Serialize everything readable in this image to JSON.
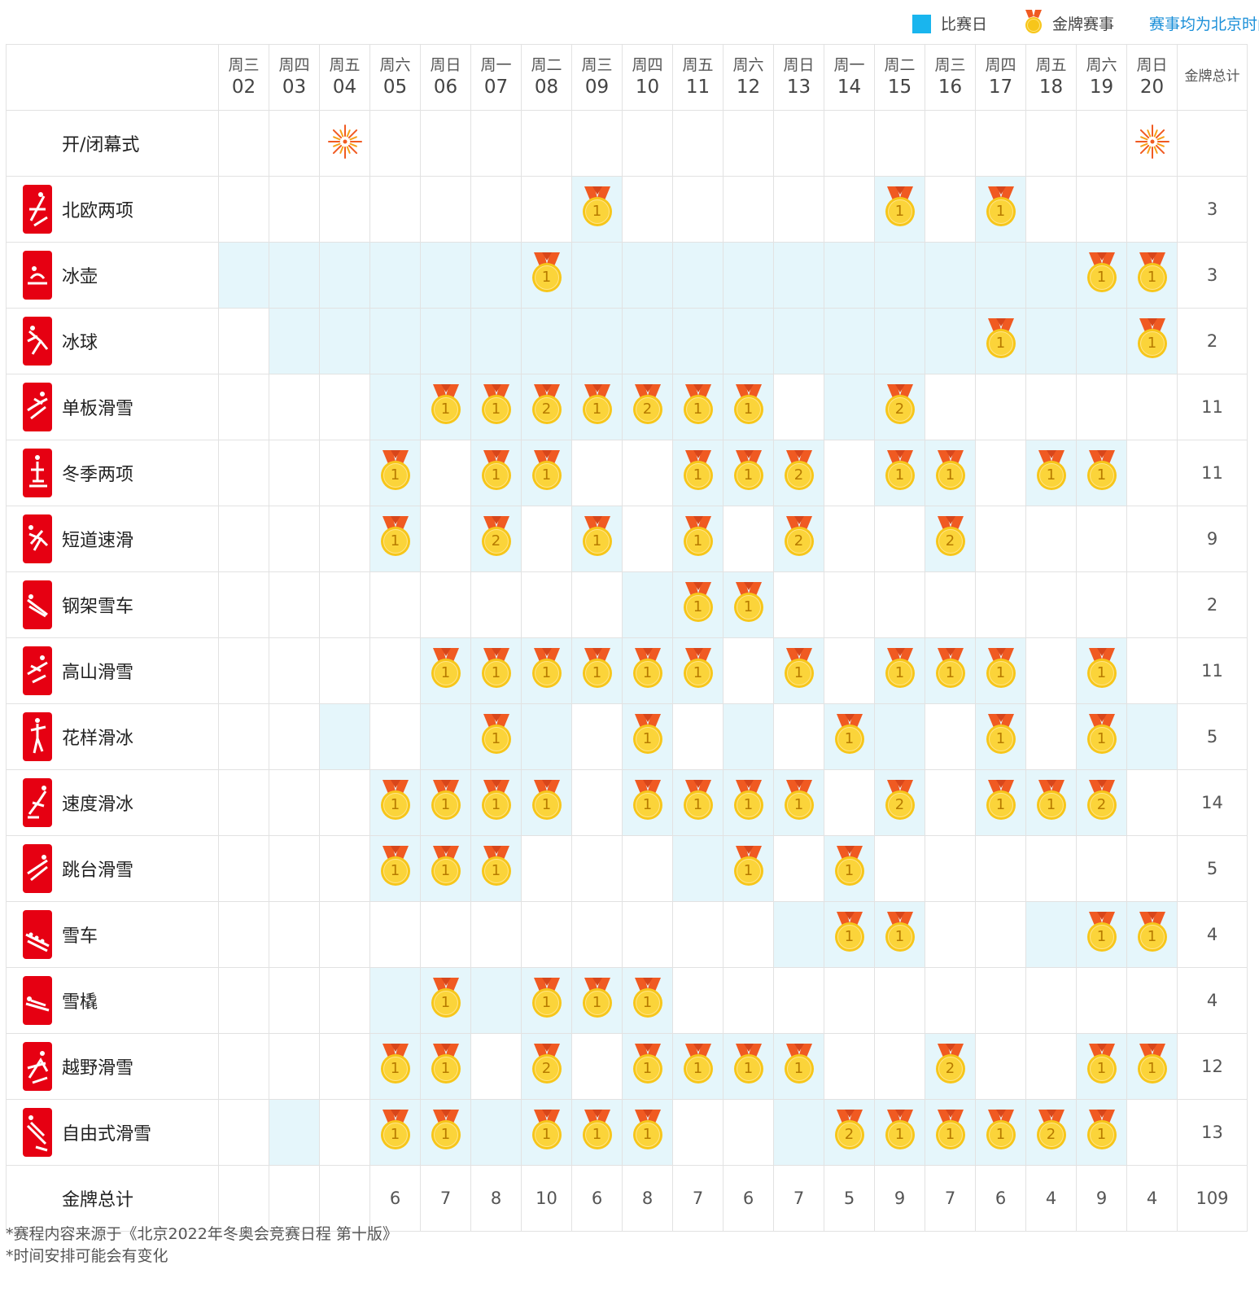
{
  "legend": {
    "competition_day_label": "比赛日",
    "gold_event_label": "金牌赛事",
    "timezone_note": "赛事均为北京时间"
  },
  "colors": {
    "active_cell": "#e5f6fb",
    "legend_square": "#19b5ee",
    "pictogram": "#e60012",
    "medal_gold": "#f7c61a",
    "ribbon": "#f05a22",
    "note_link": "#1a8fd8"
  },
  "days": [
    {
      "weekday": "周三",
      "date": "02"
    },
    {
      "weekday": "周四",
      "date": "03"
    },
    {
      "weekday": "周五",
      "date": "04"
    },
    {
      "weekday": "周六",
      "date": "05"
    },
    {
      "weekday": "周日",
      "date": "06"
    },
    {
      "weekday": "周一",
      "date": "07"
    },
    {
      "weekday": "周二",
      "date": "08"
    },
    {
      "weekday": "周三",
      "date": "09"
    },
    {
      "weekday": "周四",
      "date": "10"
    },
    {
      "weekday": "周五",
      "date": "11"
    },
    {
      "weekday": "周六",
      "date": "12"
    },
    {
      "weekday": "周日",
      "date": "13"
    },
    {
      "weekday": "周一",
      "date": "14"
    },
    {
      "weekday": "周二",
      "date": "15"
    },
    {
      "weekday": "周三",
      "date": "16"
    },
    {
      "weekday": "周四",
      "date": "17"
    },
    {
      "weekday": "周五",
      "date": "18"
    },
    {
      "weekday": "周六",
      "date": "19"
    },
    {
      "weekday": "周日",
      "date": "20"
    }
  ],
  "total_header": "金牌总计",
  "ceremony": {
    "label": "开/闭幕式",
    "days": [
      2,
      18
    ],
    "icon": "firework-icon"
  },
  "sports": [
    {
      "name": "北欧两项",
      "active": [
        7,
        13,
        15
      ],
      "medals": {
        "7": 1,
        "13": 1,
        "15": 1
      },
      "total": "3"
    },
    {
      "name": "冰壶",
      "active": [
        0,
        1,
        2,
        3,
        4,
        5,
        6,
        7,
        8,
        9,
        10,
        11,
        12,
        13,
        14,
        15,
        16,
        17,
        18
      ],
      "medals": {
        "6": 1,
        "17": 1,
        "18": 1
      },
      "total": "3"
    },
    {
      "name": "冰球",
      "active": [
        1,
        2,
        3,
        4,
        5,
        6,
        7,
        8,
        9,
        10,
        11,
        12,
        13,
        14,
        15,
        16,
        17,
        18
      ],
      "medals": {
        "15": 1,
        "18": 1
      },
      "total": "2"
    },
    {
      "name": "单板滑雪",
      "active": [
        3,
        4,
        5,
        6,
        7,
        8,
        9,
        10,
        12,
        13
      ],
      "medals": {
        "4": 1,
        "5": 1,
        "6": 2,
        "7": 1,
        "8": 2,
        "9": 1,
        "10": 1,
        "13": 2
      },
      "total": "11"
    },
    {
      "name": "冬季两项",
      "active": [
        3,
        5,
        6,
        9,
        10,
        11,
        13,
        14,
        16,
        17
      ],
      "medals": {
        "3": 1,
        "5": 1,
        "6": 1,
        "9": 1,
        "10": 1,
        "11": 2,
        "13": 1,
        "14": 1,
        "16": 1,
        "17": 1
      },
      "total": "11"
    },
    {
      "name": "短道速滑",
      "active": [
        3,
        5,
        7,
        9,
        11,
        14
      ],
      "medals": {
        "3": 1,
        "5": 2,
        "7": 1,
        "9": 1,
        "11": 2,
        "14": 2
      },
      "total": "9"
    },
    {
      "name": "钢架雪车",
      "active": [
        8,
        9,
        10
      ],
      "medals": {
        "9": 1,
        "10": 1
      },
      "total": "2"
    },
    {
      "name": "高山滑雪",
      "active": [
        4,
        5,
        6,
        7,
        8,
        9,
        11,
        13,
        14,
        15,
        17
      ],
      "medals": {
        "4": 1,
        "5": 1,
        "6": 1,
        "7": 1,
        "8": 1,
        "9": 1,
        "11": 1,
        "13": 1,
        "14": 1,
        "15": 1,
        "17": 1
      },
      "total": "11"
    },
    {
      "name": "花样滑冰",
      "active": [
        2,
        4,
        5,
        6,
        8,
        10,
        12,
        13,
        15,
        17,
        18
      ],
      "medals": {
        "5": 1,
        "8": 1,
        "12": 1,
        "15": 1,
        "17": 1
      },
      "total": "5"
    },
    {
      "name": "速度滑冰",
      "active": [
        3,
        4,
        5,
        6,
        8,
        9,
        10,
        11,
        13,
        15,
        16,
        17
      ],
      "medals": {
        "3": 1,
        "4": 1,
        "5": 1,
        "6": 1,
        "8": 1,
        "9": 1,
        "10": 1,
        "11": 1,
        "13": 2,
        "15": 1,
        "16": 1,
        "17": 2
      },
      "total": "14"
    },
    {
      "name": "跳台滑雪",
      "active": [
        3,
        4,
        5,
        9,
        10,
        12
      ],
      "medals": {
        "3": 1,
        "4": 1,
        "5": 1,
        "10": 1,
        "12": 1
      },
      "total": "5"
    },
    {
      "name": "雪车",
      "active": [
        11,
        12,
        13,
        16,
        17,
        18
      ],
      "medals": {
        "12": 1,
        "13": 1,
        "17": 1,
        "18": 1
      },
      "total": "4"
    },
    {
      "name": "雪橇",
      "active": [
        3,
        4,
        5,
        6,
        7,
        8
      ],
      "medals": {
        "4": 1,
        "6": 1,
        "7": 1,
        "8": 1
      },
      "total": "4"
    },
    {
      "name": "越野滑雪",
      "active": [
        3,
        4,
        6,
        8,
        9,
        10,
        11,
        14,
        17,
        18
      ],
      "medals": {
        "3": 1,
        "4": 1,
        "6": 2,
        "8": 1,
        "9": 1,
        "10": 1,
        "11": 1,
        "14": 2,
        "17": 1,
        "18": 1
      },
      "total": "12"
    },
    {
      "name": "自由式滑雪",
      "active": [
        1,
        3,
        4,
        5,
        6,
        7,
        8,
        11,
        12,
        13,
        14,
        15,
        16,
        17
      ],
      "medals": {
        "3": 1,
        "4": 1,
        "6": 1,
        "7": 1,
        "8": 1,
        "12": 2,
        "13": 1,
        "14": 1,
        "15": 1,
        "16": 2,
        "17": 1
      },
      "total": "13"
    }
  ],
  "daily_totals": {
    "label": "金牌总计",
    "values": [
      "",
      "",
      "",
      "6",
      "7",
      "8",
      "10",
      "6",
      "8",
      "7",
      "6",
      "7",
      "5",
      "9",
      "7",
      "6",
      "4",
      "9",
      "4"
    ],
    "grand_total": "109"
  },
  "footnotes": [
    "*赛程内容来源于《北京2022年冬奥会竞赛日程 第十版》",
    "*时间安排可能会有变化"
  ]
}
